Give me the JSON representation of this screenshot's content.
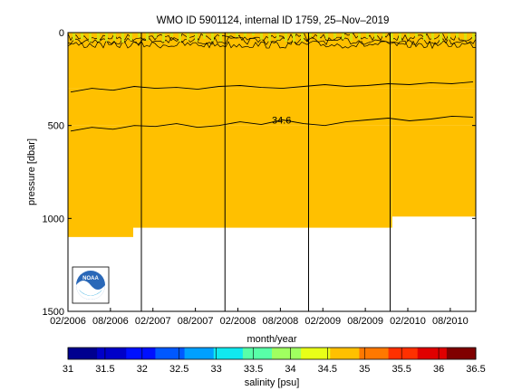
{
  "chart_data": {
    "type": "heatmap",
    "title": "WMO ID 5901124, internal ID 1759, 25–Nov–2019",
    "xlabel": "month/year",
    "ylabel": "pressure [dbar]",
    "x_ticks": [
      "02/2006",
      "08/2006",
      "02/2007",
      "08/2007",
      "02/2008",
      "08/2008",
      "02/2009",
      "08/2009",
      "02/2010",
      "08/2010"
    ],
    "y_ticks": [
      "0",
      "500",
      "1000",
      "1500"
    ],
    "ylim": [
      0,
      1500
    ],
    "y_reversed": true,
    "colorbar": {
      "label": "salinity [psu]",
      "min": 31,
      "max": 36.5,
      "ticks": [
        "31",
        "31.5",
        "32",
        "32.5",
        "33",
        "33.5",
        "34",
        "34.5",
        "35",
        "35.5",
        "36",
        "36.5"
      ],
      "colors": [
        "#00008f",
        "#0000c8",
        "#0010ff",
        "#0058ff",
        "#00a0ff",
        "#10e8ef",
        "#58ffa8",
        "#a0ff60",
        "#e8ff18",
        "#ffc000",
        "#ff7800",
        "#ff3000",
        "#e00000",
        "#800000"
      ]
    },
    "salinity_layers": [
      {
        "from_pressure": 0,
        "to_pressure": 300,
        "salinity": 34.9
      },
      {
        "from_pressure": 300,
        "to_pressure": 500,
        "salinity": 34.75
      },
      {
        "from_pressure": 500,
        "to_pressure": 1100,
        "salinity": 34.6
      }
    ],
    "profile_max_pressure": [
      {
        "period": "02/2006–01/2007",
        "pressure": 1100
      },
      {
        "period": "01/2007–12/2009",
        "pressure": 1050
      },
      {
        "period": "12/2009–12/2010",
        "pressure": 990
      }
    ],
    "contour_label": "34.6",
    "contours": [
      {
        "level": "upper",
        "pressure": [
          320,
          300,
          310,
          290,
          300,
          295,
          305,
          290,
          285,
          295,
          300,
          290,
          280,
          290,
          285,
          275,
          280,
          270,
          275,
          265
        ]
      },
      {
        "level": "34.6",
        "pressure": [
          530,
          510,
          520,
          500,
          505,
          490,
          510,
          500,
          480,
          495,
          470,
          490,
          500,
          480,
          470,
          460,
          475,
          465,
          450,
          455
        ]
      }
    ],
    "logo": "NOAA"
  }
}
